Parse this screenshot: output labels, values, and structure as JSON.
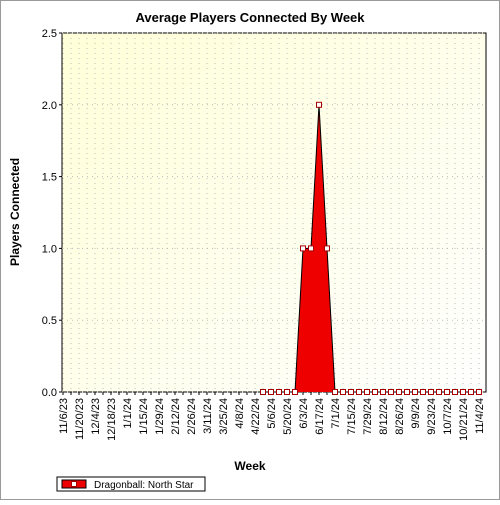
{
  "chart_data": {
    "type": "area",
    "title": "Average Players Connected By Week",
    "x_label": "Week",
    "y_label": "Players Connected",
    "categories": [
      "11/6/23",
      null,
      "11/20/23",
      null,
      "12/4/23",
      null,
      "12/18/23",
      null,
      "1/1/24",
      null,
      "1/15/24",
      null,
      "1/29/24",
      null,
      "2/12/24",
      null,
      "2/26/24",
      null,
      "3/11/24",
      null,
      "3/25/24",
      null,
      "4/8/24",
      null,
      "4/22/24",
      null,
      "5/6/24",
      null,
      "5/20/24",
      null,
      "6/3/24",
      null,
      "6/17/24",
      null,
      "7/1/24",
      null,
      "7/15/24",
      null,
      "7/29/24",
      null,
      "8/12/24",
      null,
      "8/26/24",
      null,
      "9/9/24",
      null,
      "9/23/24",
      null,
      "10/7/24",
      null,
      "10/21/24",
      null,
      "11/4/24"
    ],
    "series": [
      {
        "name": "Dragonball: North Star",
        "color": "#ee0000",
        "values": [
          null,
          null,
          null,
          null,
          null,
          null,
          null,
          null,
          null,
          null,
          null,
          null,
          null,
          null,
          null,
          null,
          null,
          null,
          null,
          null,
          null,
          null,
          null,
          null,
          null,
          0,
          0,
          0,
          0,
          0,
          1,
          1,
          2,
          1,
          0,
          0,
          0,
          0,
          0,
          0,
          0,
          0,
          0,
          0,
          0,
          0,
          0,
          0,
          0,
          0,
          0,
          0,
          0
        ]
      }
    ],
    "ylim": [
      0,
      2.5
    ],
    "yticks": [
      {
        "value": 0,
        "label": "0.0"
      },
      {
        "value": 0.5,
        "label": "0.5"
      },
      {
        "value": 1,
        "label": "1.0"
      },
      {
        "value": 1.5,
        "label": "1.5"
      },
      {
        "value": 2,
        "label": "2.0"
      },
      {
        "value": 2.5,
        "label": "2.5"
      }
    ],
    "grid": true,
    "legend": "bottom-left"
  }
}
